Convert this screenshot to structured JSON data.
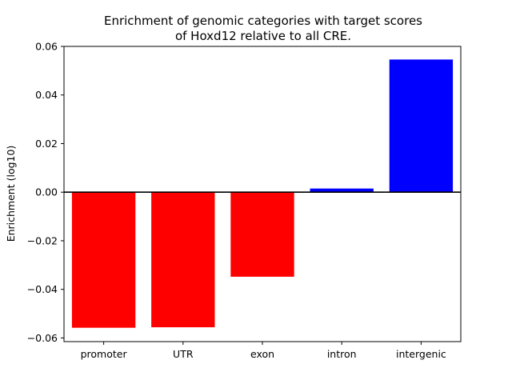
{
  "chart_data": {
    "type": "bar",
    "title_lines": [
      "Enrichment of genomic categories with target scores",
      "of Hoxd12 relative to all CRE."
    ],
    "xlabel": "",
    "ylabel": "Enrichment (log10)",
    "categories": [
      "promoter",
      "UTR",
      "exon",
      "intron",
      "intergenic"
    ],
    "values": [
      -0.0558,
      -0.0556,
      -0.0348,
      0.0015,
      0.0546
    ],
    "ylim": [
      -0.0615,
      0.06
    ],
    "yticks": [
      -0.06,
      -0.04,
      -0.02,
      0.0,
      0.02,
      0.04,
      0.06
    ],
    "ytick_labels": [
      "−0.06",
      "−0.04",
      "−0.02",
      "0.00",
      "0.02",
      "0.04",
      "0.06"
    ],
    "grid": false,
    "baseline": 0,
    "colors": {
      "negative": "#ff0000",
      "positive": "#0000ff",
      "axis": "#000000"
    }
  }
}
